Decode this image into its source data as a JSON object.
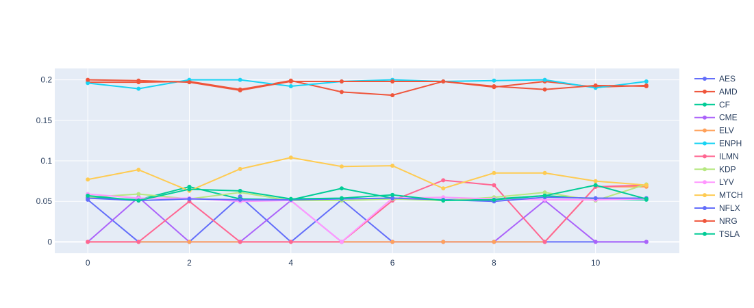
{
  "chart_data": {
    "type": "line",
    "title": "",
    "xlabel": "",
    "ylabel": "",
    "x": [
      0,
      1,
      2,
      3,
      4,
      5,
      6,
      7,
      8,
      9,
      10,
      11
    ],
    "xlim": [
      -0.65,
      11.65
    ],
    "ylim": [
      -0.014,
      0.214
    ],
    "xticks": [
      0,
      2,
      4,
      6,
      8,
      10
    ],
    "xtick_labels": [
      "0",
      "2",
      "4",
      "6",
      "8",
      "10"
    ],
    "yticks": [
      0,
      0.05,
      0.1,
      0.15,
      0.2
    ],
    "ytick_labels": [
      "0",
      "0.05",
      "0.1",
      "0.15",
      "0.2"
    ],
    "grid": true,
    "legend_position": "right",
    "plot_bgcolor": "#e5ecf6",
    "series": [
      {
        "name": "AES",
        "color": "#636efa",
        "values": [
          0.052,
          0,
          0,
          0.056,
          0,
          0.052,
          0,
          0,
          0,
          0,
          0,
          0
        ]
      },
      {
        "name": "AMD",
        "color": "#ef553b",
        "values": [
          0.197,
          0.197,
          0.198,
          0.188,
          0.199,
          0.185,
          0.181,
          0.198,
          0.191,
          0.198,
          0.191,
          0.193
        ]
      },
      {
        "name": "CF",
        "color": "#00cc96",
        "values": [
          0.055,
          0.052,
          0.068,
          0.053,
          0.052,
          0.066,
          0.054,
          0.052,
          0.053,
          0.057,
          0.053,
          0.052
        ]
      },
      {
        "name": "CME",
        "color": "#ab63fa",
        "values": [
          0,
          0.055,
          0,
          0,
          0.051,
          0,
          0,
          0,
          0,
          0.051,
          0,
          0
        ]
      },
      {
        "name": "ELV",
        "color": "#ffa15a",
        "values": [
          0,
          0,
          0,
          0,
          0,
          0,
          0,
          0,
          0,
          0,
          0.068,
          0.068
        ]
      },
      {
        "name": "ENPH",
        "color": "#19d3f3",
        "values": [
          0.196,
          0.189,
          0.2,
          0.2,
          0.192,
          0.198,
          0.2,
          0.198,
          0.199,
          0.2,
          0.19,
          0.198
        ]
      },
      {
        "name": "ILMN",
        "color": "#ff6692",
        "values": [
          0,
          0,
          0.05,
          0,
          0,
          0,
          0.051,
          0.076,
          0.07,
          0,
          0.068,
          0.07
        ]
      },
      {
        "name": "KDP",
        "color": "#b6e880",
        "values": [
          0.055,
          0.059,
          0.053,
          0.061,
          0.051,
          0.051,
          0.053,
          0.051,
          0.055,
          0.061,
          0.051,
          0.071
        ]
      },
      {
        "name": "LYV",
        "color": "#ff97ff",
        "values": [
          0.059,
          0.054,
          0.054,
          0.05,
          0.051,
          0,
          0.054,
          0.055,
          0.053,
          0.052,
          0.052,
          0.053
        ]
      },
      {
        "name": "MTCH",
        "color": "#fecb52",
        "values": [
          0.077,
          0.089,
          0.063,
          0.09,
          0.104,
          0.093,
          0.094,
          0.066,
          0.085,
          0.085,
          0.075,
          0.07
        ]
      },
      {
        "name": "NFLX",
        "color": "#636efa",
        "values": [
          0.054,
          0.051,
          0.053,
          0.052,
          0.052,
          0.053,
          0.054,
          0.052,
          0.05,
          0.055,
          0.054,
          0.054
        ]
      },
      {
        "name": "NRG",
        "color": "#ef553b",
        "values": [
          0.2,
          0.199,
          0.197,
          0.187,
          0.198,
          0.198,
          0.198,
          0.198,
          0.192,
          0.188,
          0.193,
          0.192
        ]
      },
      {
        "name": "TSLA",
        "color": "#00cc96",
        "values": [
          0.057,
          0.051,
          0.065,
          0.063,
          0.053,
          0.054,
          0.058,
          0.051,
          0.052,
          0.057,
          0.07,
          0.053
        ]
      }
    ]
  }
}
